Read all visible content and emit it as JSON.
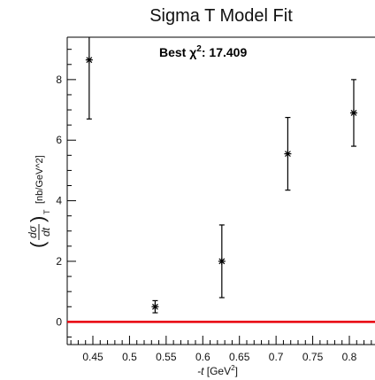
{
  "chart_data": {
    "type": "scatter",
    "title": "Sigma T Model Fit",
    "annotation": {
      "prefix": "Best  χ",
      "sup": "2",
      "suffix": ": 17.409"
    },
    "xlabel": {
      "var": "-t",
      "unit": "[GeV",
      "sup": "2",
      "close": "]"
    },
    "ylabel": {
      "bracket_left": "(",
      "frac_top": "dσ",
      "frac_bottom": "dt",
      "bracket_right": ")",
      "sub": "T",
      "unit": "[nb/GeV^2]"
    },
    "xlim": [
      0.415,
      0.835
    ],
    "ylim": [
      -0.75,
      9.4
    ],
    "x_ticks_major": [
      0.45,
      0.5,
      0.55,
      0.6,
      0.65,
      0.7,
      0.75,
      0.8
    ],
    "x_tick_labels": [
      "0.45",
      "0.5",
      "0.55",
      "0.6",
      "0.65",
      "0.7",
      "0.75",
      "0.8"
    ],
    "y_ticks_major": [
      0,
      2,
      4,
      6,
      8
    ],
    "y_tick_labels": [
      "0",
      "2",
      "4",
      "6",
      "8"
    ],
    "grid": false,
    "fit_line": {
      "y": 0,
      "color": "#e8000b"
    },
    "points": [
      {
        "x": 0.445,
        "y": 8.65,
        "err": 1.95
      },
      {
        "x": 0.535,
        "y": 0.5,
        "err": 0.2
      },
      {
        "x": 0.626,
        "y": 2.0,
        "err": 1.2
      },
      {
        "x": 0.716,
        "y": 5.55,
        "err": 1.2
      },
      {
        "x": 0.806,
        "y": 6.9,
        "err": 1.1
      }
    ]
  }
}
